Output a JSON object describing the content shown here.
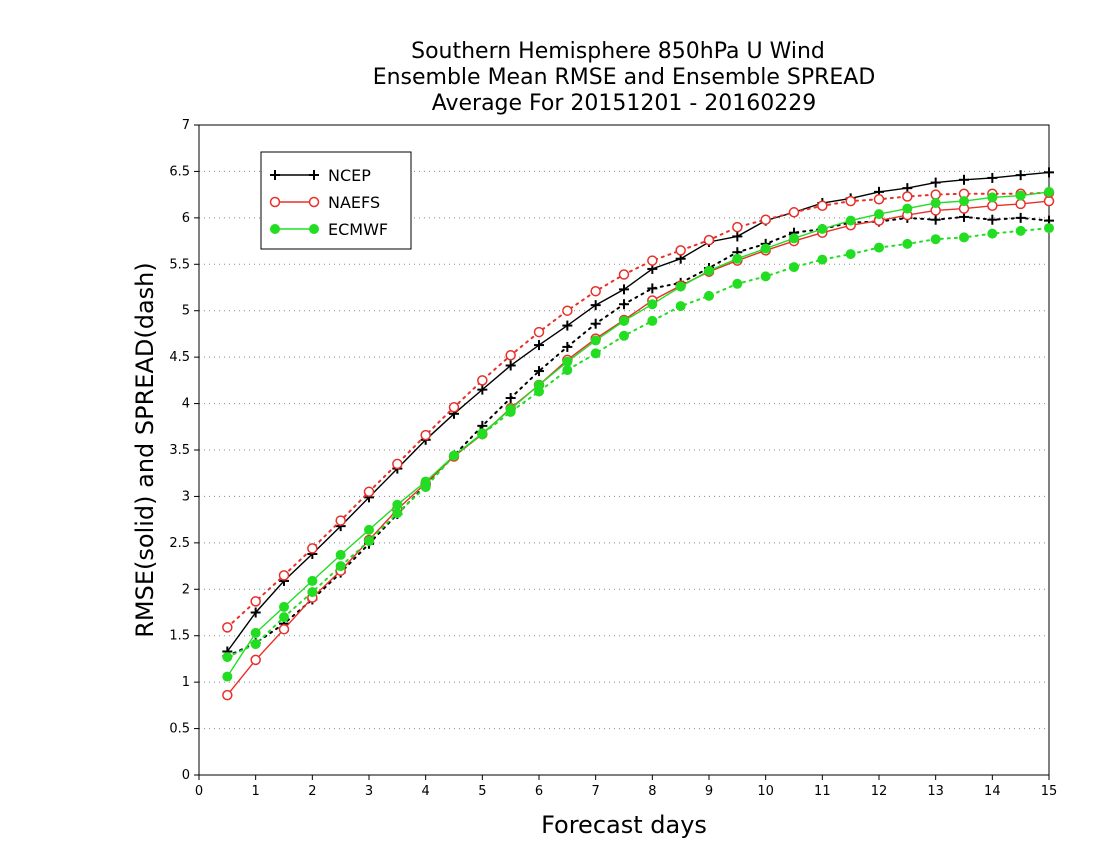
{
  "chart_data": {
    "type": "line",
    "title_lines": [
      "Southern Hemisphere 850hPa U Wind",
      "Ensemble Mean RMSE and Ensemble SPREAD",
      "Average For 20151201 - 20160229"
    ],
    "xlabel": "Forecast days",
    "ylabel": "RMSE(solid) and SPREAD(dash)",
    "xlim": [
      0,
      15
    ],
    "ylim": [
      0,
      7
    ],
    "x_ticks": [
      "0",
      "1",
      "2",
      "3",
      "4",
      "5",
      "6",
      "7",
      "8",
      "9",
      "10",
      "11",
      "12",
      "13",
      "14",
      "15"
    ],
    "y_ticks": [
      "0",
      "0.5",
      "1",
      "1.5",
      "2",
      "2.5",
      "3",
      "3.5",
      "4",
      "4.5",
      "5",
      "5.5",
      "6",
      "6.5",
      "7"
    ],
    "grid": "horizontal dotted",
    "legend_position": "top-left",
    "x": [
      0.5,
      1,
      1.5,
      2,
      2.5,
      3,
      3.5,
      4,
      4.5,
      5,
      5.5,
      6,
      6.5,
      7,
      7.5,
      8,
      8.5,
      9,
      9.5,
      10,
      10.5,
      11,
      11.5,
      12,
      12.5,
      13,
      13.5,
      14,
      14.5,
      15
    ],
    "series": [
      {
        "name": "NCEP",
        "color": "#000000",
        "marker": "plus",
        "rmse": [
          1.33,
          1.75,
          2.09,
          2.38,
          2.68,
          2.99,
          3.3,
          3.61,
          3.89,
          4.15,
          4.41,
          4.63,
          4.84,
          5.06,
          5.23,
          5.45,
          5.56,
          5.74,
          5.8,
          5.97,
          6.06,
          6.16,
          6.21,
          6.28,
          6.32,
          6.38,
          6.41,
          6.43,
          6.46,
          6.49
        ],
        "spread": [
          1.28,
          1.42,
          1.63,
          1.89,
          2.18,
          2.49,
          2.81,
          3.12,
          3.44,
          3.76,
          4.06,
          4.35,
          4.61,
          4.86,
          5.07,
          5.24,
          5.3,
          5.46,
          5.63,
          5.72,
          5.84,
          5.88,
          5.95,
          5.96,
          6.0,
          5.98,
          6.01,
          5.98,
          6.0,
          5.97
        ]
      },
      {
        "name": "NAEFS",
        "color": "#e8302a",
        "marker": "open-circle",
        "rmse": [
          0.86,
          1.24,
          1.57,
          1.91,
          2.2,
          2.53,
          2.86,
          3.14,
          3.43,
          3.67,
          3.95,
          4.2,
          4.47,
          4.7,
          4.9,
          5.11,
          5.27,
          5.42,
          5.54,
          5.65,
          5.75,
          5.84,
          5.92,
          5.97,
          6.03,
          6.08,
          6.1,
          6.13,
          6.15,
          6.18
        ],
        "spread": [
          1.59,
          1.87,
          2.15,
          2.44,
          2.74,
          3.05,
          3.35,
          3.66,
          3.96,
          4.25,
          4.52,
          4.77,
          5.0,
          5.21,
          5.39,
          5.54,
          5.65,
          5.76,
          5.9,
          5.98,
          6.06,
          6.13,
          6.18,
          6.2,
          6.23,
          6.25,
          6.26,
          6.26,
          6.26,
          6.27
        ]
      },
      {
        "name": "ECMWF",
        "color": "#22dd22",
        "marker": "filled-circle",
        "rmse": [
          1.06,
          1.53,
          1.81,
          2.09,
          2.37,
          2.64,
          2.91,
          3.16,
          3.44,
          3.68,
          3.94,
          4.2,
          4.45,
          4.68,
          4.89,
          5.07,
          5.26,
          5.43,
          5.56,
          5.67,
          5.78,
          5.88,
          5.97,
          6.04,
          6.1,
          6.16,
          6.18,
          6.22,
          6.24,
          6.28
        ],
        "spread": [
          1.27,
          1.41,
          1.7,
          1.97,
          2.25,
          2.52,
          2.82,
          3.1,
          3.44,
          3.67,
          3.91,
          4.13,
          4.36,
          4.54,
          4.73,
          4.89,
          5.05,
          5.16,
          5.29,
          5.37,
          5.47,
          5.55,
          5.61,
          5.68,
          5.72,
          5.77,
          5.79,
          5.83,
          5.86,
          5.89
        ]
      }
    ]
  }
}
